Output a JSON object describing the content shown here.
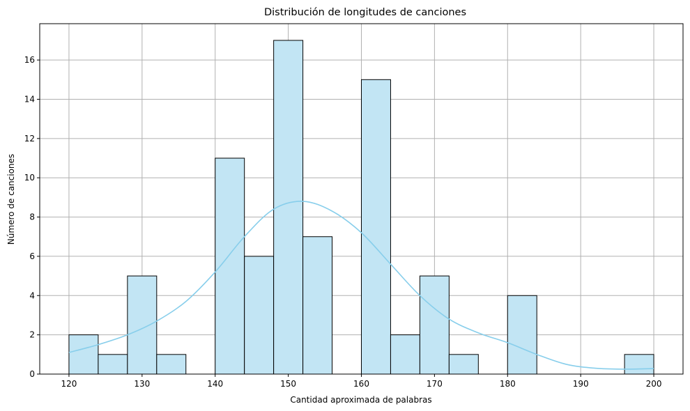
{
  "chart_data": {
    "type": "bar",
    "title": "Distribución de longitudes de canciones",
    "xlabel": "Cantidad aproximada de palabras",
    "ylabel": "Número de canciones",
    "xlim": [
      116,
      204
    ],
    "ylim": [
      0,
      17.85
    ],
    "grid": true,
    "x_ticks": [
      120,
      130,
      140,
      150,
      160,
      170,
      180,
      190,
      200
    ],
    "y_ticks": [
      0,
      2,
      4,
      6,
      8,
      10,
      12,
      14,
      16
    ],
    "bins": [
      {
        "start": 120,
        "end": 124,
        "count": 2
      },
      {
        "start": 124,
        "end": 128,
        "count": 1
      },
      {
        "start": 128,
        "end": 132,
        "count": 5
      },
      {
        "start": 132,
        "end": 136,
        "count": 1
      },
      {
        "start": 136,
        "end": 140,
        "count": 0
      },
      {
        "start": 140,
        "end": 144,
        "count": 11
      },
      {
        "start": 144,
        "end": 148,
        "count": 6
      },
      {
        "start": 148,
        "end": 152,
        "count": 17
      },
      {
        "start": 152,
        "end": 156,
        "count": 7
      },
      {
        "start": 156,
        "end": 160,
        "count": 0
      },
      {
        "start": 160,
        "end": 164,
        "count": 15
      },
      {
        "start": 164,
        "end": 168,
        "count": 2
      },
      {
        "start": 168,
        "end": 172,
        "count": 5
      },
      {
        "start": 172,
        "end": 176,
        "count": 1
      },
      {
        "start": 176,
        "end": 180,
        "count": 0
      },
      {
        "start": 180,
        "end": 184,
        "count": 4
      },
      {
        "start": 184,
        "end": 188,
        "count": 0
      },
      {
        "start": 188,
        "end": 192,
        "count": 0
      },
      {
        "start": 192,
        "end": 196,
        "count": 0
      },
      {
        "start": 196,
        "end": 200,
        "count": 1
      }
    ],
    "kde": {
      "x": [
        120,
        124,
        128,
        132,
        136,
        140,
        144,
        148,
        152,
        156,
        160,
        164,
        168,
        172,
        176,
        180,
        184,
        188,
        192,
        196,
        200
      ],
      "y": [
        1.1,
        1.5,
        2.0,
        2.7,
        3.7,
        5.2,
        7.0,
        8.4,
        8.8,
        8.3,
        7.2,
        5.6,
        4.0,
        2.8,
        2.1,
        1.6,
        1.0,
        0.5,
        0.3,
        0.25,
        0.28
      ]
    },
    "colors": {
      "bar_fill": "#c2e5f4",
      "bar_edge": "#000000",
      "kde_line": "#87ceeb",
      "grid": "#b0b0b0"
    }
  }
}
